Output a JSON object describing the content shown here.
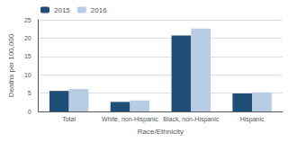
{
  "chart_data": {
    "type": "bar",
    "categories": [
      "Total",
      "White, non-Hispanic",
      "Black, non-Hispanic",
      "Hispanic"
    ],
    "series": [
      {
        "name": "2015",
        "color": "#1f4e79",
        "values": [
          5.6,
          2.6,
          20.7,
          4.9
        ]
      },
      {
        "name": "2016",
        "color": "#b8cce4",
        "values": [
          6.1,
          3.0,
          22.6,
          5.2
        ]
      }
    ],
    "xlabel": "Race/Ethnicity",
    "ylabel": "Deaths per 100,000",
    "ylim": [
      0,
      25
    ],
    "yticks": [
      0,
      5,
      10,
      15,
      20,
      25
    ],
    "grid": true,
    "legend": "upper left"
  }
}
